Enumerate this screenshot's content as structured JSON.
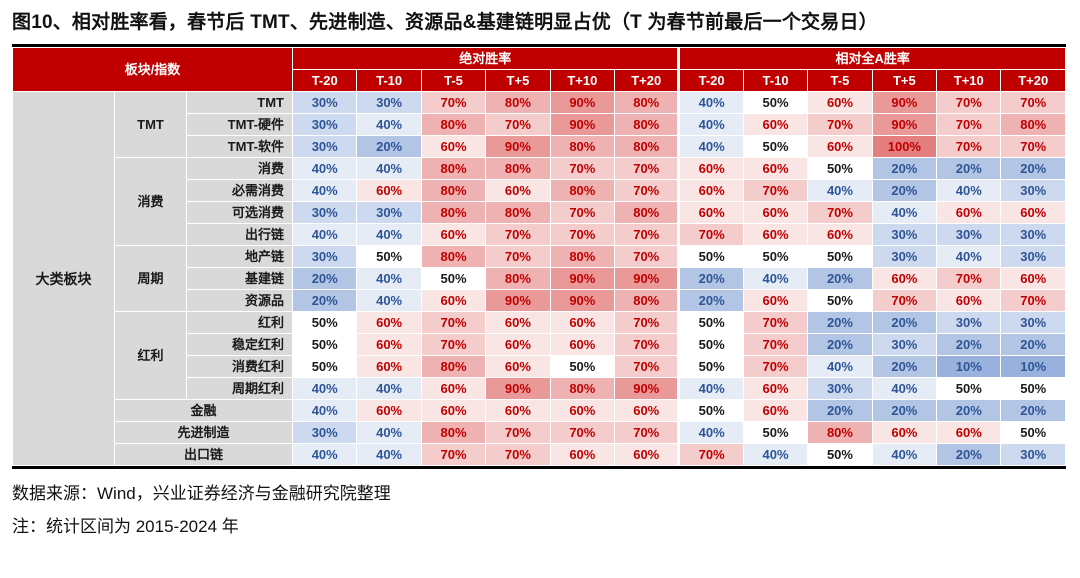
{
  "title": "图10、相对胜率看，春节后 TMT、先进制造、资源品&基建链明显占优（T 为春节前最后一个交易日）",
  "source": "数据来源：Wind，兴业证券经济与金融研究院整理",
  "note": "注：统计区间为 2015-2024 年",
  "colors": {
    "header_bg": "#c00000",
    "header_text": "#ffffff",
    "label_bg": "#d9d9d9",
    "blue_max": "#7f9fd4",
    "red_max": "#e57f7f",
    "blue_text": "#2e5596",
    "red_text": "#c00000",
    "neutral_text": "#1a1a1a"
  },
  "chart_data": {
    "type": "table",
    "style": "heatmap, diverging around 50%: blue below 50%, white at 50%, red above 50%",
    "unit": "%",
    "corner": "板块/指数",
    "left_header": "大类板块",
    "sections": [
      "绝对胜率",
      "相对全A胜率"
    ],
    "columns": [
      "T-20",
      "T-10",
      "T-5",
      "T+5",
      "T+10",
      "T+20"
    ],
    "rows": [
      {
        "group": "TMT",
        "gspan": 3,
        "item": "TMT",
        "abs": [
          30,
          30,
          70,
          80,
          90,
          80
        ],
        "rel": [
          40,
          50,
          60,
          90,
          70,
          70
        ]
      },
      {
        "item": "TMT-硬件",
        "abs": [
          30,
          40,
          80,
          70,
          90,
          80
        ],
        "rel": [
          40,
          60,
          70,
          90,
          70,
          80
        ]
      },
      {
        "item": "TMT-软件",
        "abs": [
          30,
          20,
          60,
          90,
          80,
          80
        ],
        "rel": [
          40,
          50,
          60,
          100,
          70,
          70
        ]
      },
      {
        "group": "消费",
        "gspan": 4,
        "item": "消费",
        "abs": [
          40,
          40,
          80,
          80,
          70,
          70
        ],
        "rel": [
          60,
          60,
          50,
          20,
          20,
          20
        ]
      },
      {
        "item": "必需消费",
        "abs": [
          40,
          60,
          80,
          60,
          80,
          70
        ],
        "rel": [
          60,
          70,
          40,
          20,
          40,
          30
        ]
      },
      {
        "item": "可选消费",
        "abs": [
          30,
          30,
          80,
          80,
          70,
          80
        ],
        "rel": [
          60,
          60,
          70,
          40,
          60,
          60
        ]
      },
      {
        "item": "出行链",
        "abs": [
          40,
          40,
          60,
          70,
          70,
          70
        ],
        "rel": [
          70,
          60,
          60,
          30,
          30,
          30
        ]
      },
      {
        "group": "周期",
        "gspan": 3,
        "item": "地产链",
        "abs": [
          30,
          50,
          80,
          70,
          80,
          70
        ],
        "rel": [
          50,
          50,
          50,
          30,
          40,
          30
        ]
      },
      {
        "item": "基建链",
        "abs": [
          20,
          40,
          50,
          80,
          90,
          90
        ],
        "rel": [
          20,
          40,
          20,
          60,
          70,
          60
        ]
      },
      {
        "item": "资源品",
        "abs": [
          20,
          40,
          60,
          90,
          90,
          80
        ],
        "rel": [
          20,
          60,
          50,
          70,
          60,
          70
        ]
      },
      {
        "group": "红利",
        "gspan": 4,
        "item": "红利",
        "abs": [
          50,
          60,
          70,
          60,
          60,
          70
        ],
        "rel": [
          50,
          70,
          20,
          20,
          30,
          30
        ]
      },
      {
        "item": "稳定红利",
        "abs": [
          50,
          60,
          70,
          60,
          60,
          70
        ],
        "rel": [
          50,
          70,
          20,
          30,
          20,
          20
        ]
      },
      {
        "item": "消费红利",
        "abs": [
          50,
          60,
          80,
          60,
          50,
          70
        ],
        "rel": [
          50,
          70,
          40,
          20,
          10,
          10
        ]
      },
      {
        "item": "周期红利",
        "abs": [
          40,
          40,
          60,
          90,
          80,
          90
        ],
        "rel": [
          40,
          60,
          30,
          40,
          50,
          50
        ]
      },
      {
        "merged": true,
        "item": "金融",
        "abs": [
          40,
          60,
          60,
          60,
          60,
          60
        ],
        "rel": [
          50,
          60,
          20,
          20,
          20,
          20
        ]
      },
      {
        "merged": true,
        "item": "先进制造",
        "abs": [
          30,
          40,
          80,
          70,
          70,
          70
        ],
        "rel": [
          40,
          50,
          80,
          60,
          60,
          50
        ]
      },
      {
        "merged": true,
        "item": "出口链",
        "abs": [
          40,
          40,
          70,
          70,
          60,
          60
        ],
        "rel": [
          70,
          40,
          50,
          40,
          20,
          30
        ]
      }
    ]
  }
}
